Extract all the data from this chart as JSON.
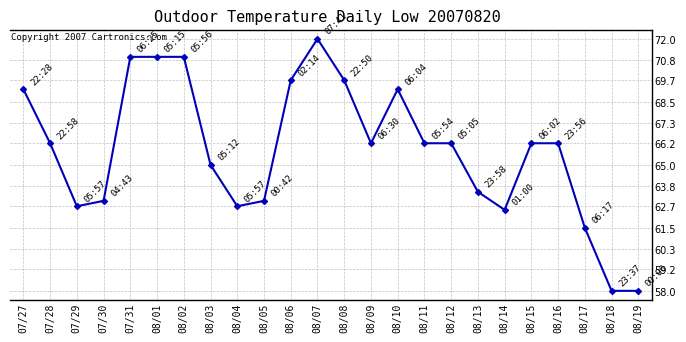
{
  "title": "Outdoor Temperature Daily Low 20070820",
  "copyright": "Copyright 2007 Cartronics.com",
  "dates": [
    "07/27",
    "07/28",
    "07/29",
    "07/30",
    "07/31",
    "08/01",
    "08/02",
    "08/03",
    "08/04",
    "08/05",
    "08/06",
    "08/07",
    "08/08",
    "08/09",
    "08/10",
    "08/11",
    "08/12",
    "08/13",
    "08/14",
    "08/15",
    "08/16",
    "08/17",
    "08/18",
    "08/19"
  ],
  "temps": [
    69.2,
    66.2,
    62.7,
    63.0,
    71.0,
    71.0,
    71.0,
    65.0,
    62.7,
    63.0,
    69.7,
    72.0,
    69.7,
    66.2,
    69.2,
    66.2,
    66.2,
    63.5,
    62.5,
    66.2,
    66.2,
    61.5,
    58.0,
    58.0
  ],
  "times": [
    "22:28",
    "22:58",
    "05:57",
    "04:43",
    "06:25",
    "05:15",
    "05:56",
    "05:12",
    "05:57",
    "00:42",
    "02:14",
    "07:41",
    "22:50",
    "06:30",
    "06:04",
    "05:54",
    "05:05",
    "23:58",
    "01:00",
    "06:02",
    "23:56",
    "06:17",
    "23:37",
    "00:00"
  ],
  "ylim": [
    57.5,
    72.5
  ],
  "yticks": [
    58.0,
    59.2,
    60.3,
    61.5,
    62.7,
    63.8,
    65.0,
    66.2,
    67.3,
    68.5,
    69.7,
    70.8,
    72.0
  ],
  "line_color": "#0000bb",
  "marker_color": "#0000bb",
  "bg_color": "#ffffff",
  "grid_color": "#c0c0c0",
  "title_fontsize": 11,
  "label_fontsize": 6.5,
  "tick_fontsize": 7,
  "copyright_fontsize": 6.5
}
